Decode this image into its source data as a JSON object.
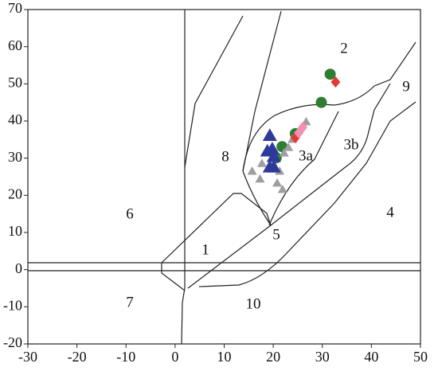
{
  "chart_data": {
    "type": "scatter",
    "xlim": [
      -30,
      50
    ],
    "ylim": [
      -20,
      70
    ],
    "xticks": [
      -30,
      -20,
      -10,
      0,
      10,
      20,
      30,
      40,
      50
    ],
    "yticks": [
      -20,
      -10,
      0,
      10,
      20,
      30,
      40,
      50,
      60,
      70
    ],
    "series": [
      {
        "color": "#2e7d32",
        "marker": "circle",
        "x": [
          31.6,
          29.8,
          24.5,
          21.8,
          20.6
        ],
        "y": [
          52.6,
          45,
          36.6,
          33.1,
          30.1
        ]
      },
      {
        "color": "#9e9e9e",
        "marker": "triangle",
        "x": [
          15.7,
          17.3,
          20.8,
          21.9,
          22.2,
          23.1,
          26.7,
          23.9,
          17.7,
          21.3
        ],
        "y": [
          26.5,
          24.4,
          23.3,
          21.6,
          31.4,
          32.9,
          39.8,
          35.1,
          28.6,
          26.5
        ]
      },
      {
        "color": "#2e3a9a",
        "marker": "triangle",
        "x": [
          19.3,
          19.8,
          20.1,
          19.3,
          20.1,
          18.8
        ],
        "y": [
          36.1,
          32.5,
          30.4,
          27.6,
          27.6,
          31.9
        ]
      },
      {
        "color": "#e53935",
        "marker": "diamond",
        "x": [
          32.7,
          24.5
        ],
        "y": [
          50.5,
          35.5
        ]
      },
      {
        "color": "#f48fb1",
        "marker": "diamond",
        "x": [
          26,
          25.2
        ],
        "y": [
          38.3,
          36.8
        ]
      }
    ],
    "region_labels": [
      "1",
      "2",
      "3a",
      "3b",
      "4",
      "5",
      "6",
      "7",
      "8",
      "9",
      "10"
    ]
  }
}
